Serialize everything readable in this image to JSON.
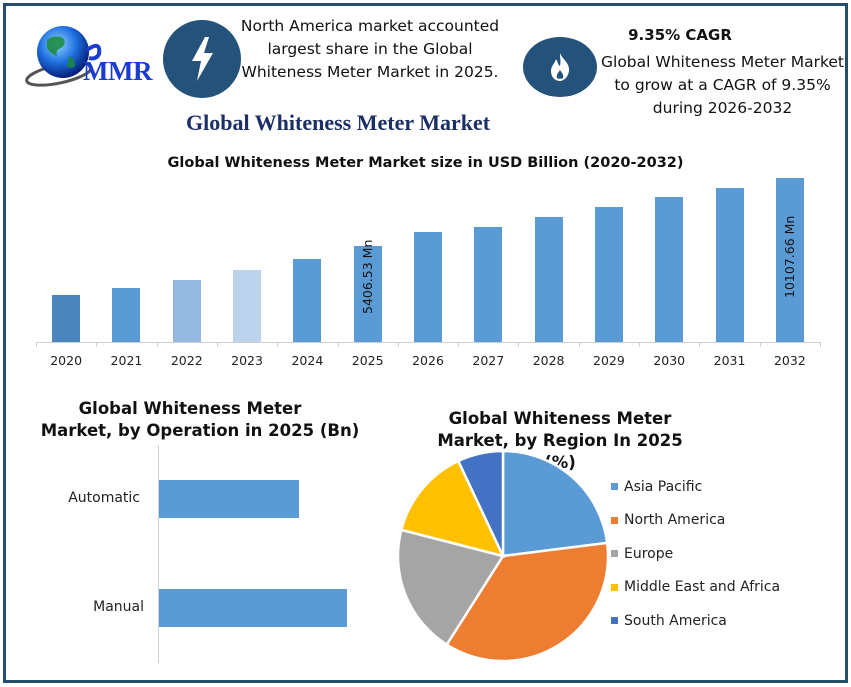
{
  "brand": {
    "logo_text": "MMR"
  },
  "info_left": {
    "icon": "lightning-bolt-icon",
    "text": [
      "North America market accounted",
      "largest share in the Global",
      "Whiteness Meter Market in 2025."
    ]
  },
  "info_right": {
    "icon": "flame-icon",
    "title": "9.35% CAGR",
    "text": [
      "Global Whiteness Meter Market",
      "to grow at a CAGR of 9.35%",
      "during 2026-2032"
    ]
  },
  "main_title": "Global Whiteness Meter Market",
  "colors": {
    "frame": "#244e6b",
    "icon_circle": "#25527a",
    "title_navy": "#1b2f66",
    "bar_blue": "#5b9bd5"
  },
  "chart_data": [
    {
      "type": "bar",
      "title": "Global Whiteness Meter Market size in USD Billion (2020-2032)",
      "xlabel": "",
      "ylabel": "",
      "grid": false,
      "categories": [
        "2020",
        "2021",
        "2022",
        "2023",
        "2024",
        "2025",
        "2026",
        "2027",
        "2028",
        "2029",
        "2030",
        "2031",
        "2032"
      ],
      "values": [
        2018,
        2501,
        3054,
        3745,
        4505,
        5406.53,
        6371,
        6717,
        7408,
        8099,
        8790,
        9411,
        10107.66
      ],
      "bar_colors": [
        "#4a86bd",
        "#5b9bd5",
        "#94b8e0",
        "#bdd3ed",
        "#5b9bd5",
        "#5b9bd5",
        "#5b9bd5",
        "#5b9bd5",
        "#5b9bd5",
        "#5b9bd5",
        "#5b9bd5",
        "#5b9bd5",
        "#5b9bd5"
      ],
      "annotations": [
        {
          "category": "2025",
          "text": "5406.53 Mn"
        },
        {
          "category": "2032",
          "text": "10107.66 Mn"
        }
      ]
    },
    {
      "type": "bar",
      "orientation": "horizontal",
      "title": "Global Whiteness Meter Market, by Operation in 2025 (Bn)",
      "categories": [
        "Automatic",
        "Manual"
      ],
      "values": [
        0.75,
        1.0
      ],
      "note_values": "relative bar lengths (no axis shown)"
    },
    {
      "type": "pie",
      "title": "Global Whiteness Meter Market, by Region In 2025 (%)",
      "categories": [
        "Asia Pacific",
        "North America",
        "Europe",
        "Middle East and Africa",
        "South America"
      ],
      "values": [
        23,
        36,
        20,
        14,
        7
      ],
      "colors": [
        "#5b9bd5",
        "#ed7d31",
        "#a5a5a5",
        "#ffc000",
        "#4472c4"
      ],
      "legend_position": "right"
    }
  ],
  "bar_chart_labels": {
    "title": "Global Whiteness Meter Market size in USD Billion (2020-2032)",
    "annotation_2025": "5406.53 Mn",
    "annotation_2032": "10107.66 Mn"
  },
  "operation_chart": {
    "title_line1": "Global Whiteness Meter",
    "title_line2": "Market, by Operation in 2025 (Bn)",
    "labels": [
      "Automatic",
      "Manual"
    ]
  },
  "region_chart": {
    "title_line1": "Global Whiteness Meter",
    "title_line2": "Market, by Region In 2025 (%)",
    "legend": [
      "Asia Pacific",
      "North America",
      "Europe",
      "Middle East and Africa",
      "South America"
    ]
  }
}
